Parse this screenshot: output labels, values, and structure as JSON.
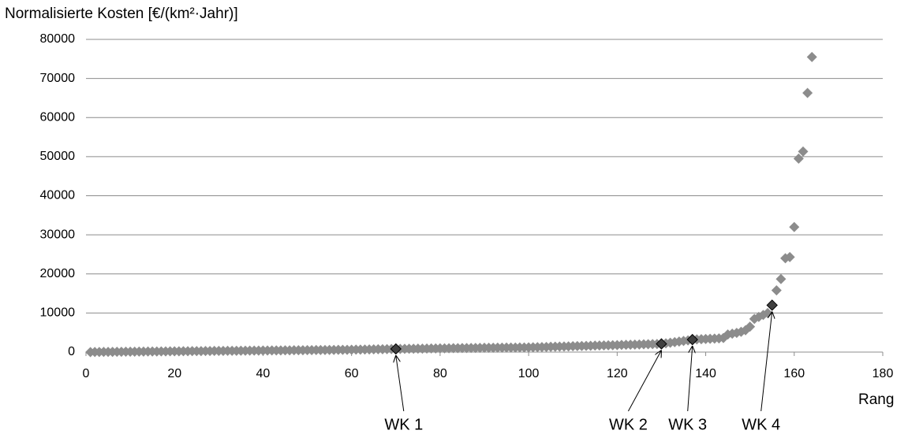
{
  "chart_data": {
    "type": "scatter",
    "y_label": "Normalisierte Kosten [€/(km²·Jahr)]",
    "x_label": "Rang",
    "xlim": [
      0,
      180
    ],
    "xticks": [
      0,
      20,
      40,
      60,
      80,
      100,
      120,
      140,
      160,
      180
    ],
    "ylim": [
      0,
      80000
    ],
    "yticks": [
      0,
      10000,
      20000,
      30000,
      40000,
      50000,
      60000,
      70000,
      80000
    ],
    "grid": true,
    "series": [
      {
        "color": "#8c8c8c",
        "x": [
          1,
          2,
          3,
          4,
          5,
          6,
          7,
          8,
          9,
          10,
          11,
          12,
          13,
          14,
          15,
          16,
          17,
          18,
          19,
          20,
          21,
          22,
          23,
          24,
          25,
          26,
          27,
          28,
          29,
          30,
          31,
          32,
          33,
          34,
          35,
          36,
          37,
          38,
          39,
          40,
          41,
          42,
          43,
          44,
          45,
          46,
          47,
          48,
          49,
          50,
          51,
          52,
          53,
          54,
          55,
          56,
          57,
          58,
          59,
          60,
          61,
          62,
          63,
          64,
          65,
          66,
          67,
          68,
          69,
          70,
          71,
          72,
          73,
          74,
          75,
          76,
          77,
          78,
          79,
          80,
          81,
          82,
          83,
          84,
          85,
          86,
          87,
          88,
          89,
          90,
          91,
          92,
          93,
          94,
          95,
          96,
          97,
          98,
          99,
          100,
          101,
          102,
          103,
          104,
          105,
          106,
          107,
          108,
          109,
          110,
          111,
          112,
          113,
          114,
          115,
          116,
          117,
          118,
          119,
          120,
          121,
          122,
          123,
          124,
          125,
          126,
          127,
          128,
          129,
          130,
          131,
          132,
          133,
          134,
          135,
          136,
          137,
          138,
          139,
          140,
          141,
          142,
          143,
          144,
          145,
          146,
          147,
          148,
          149,
          150,
          151,
          152,
          153,
          154,
          155,
          156,
          157,
          158,
          159,
          160,
          161,
          162,
          163,
          164
        ],
        "values": [
          10,
          20,
          30,
          40,
          50,
          60,
          70,
          80,
          90,
          100,
          110,
          120,
          130,
          140,
          150,
          160,
          170,
          180,
          190,
          200,
          210,
          220,
          230,
          240,
          250,
          260,
          270,
          280,
          290,
          300,
          310,
          320,
          330,
          340,
          350,
          360,
          370,
          380,
          390,
          400,
          410,
          420,
          430,
          440,
          450,
          460,
          470,
          480,
          490,
          500,
          510,
          520,
          530,
          540,
          550,
          560,
          570,
          580,
          590,
          600,
          620,
          640,
          660,
          680,
          700,
          720,
          740,
          760,
          780,
          800,
          815,
          830,
          845,
          860,
          875,
          890,
          905,
          920,
          935,
          950,
          965,
          980,
          995,
          1010,
          1025,
          1040,
          1055,
          1070,
          1085,
          1100,
          1110,
          1120,
          1130,
          1140,
          1150,
          1160,
          1170,
          1180,
          1190,
          1200,
          1230,
          1260,
          1290,
          1320,
          1350,
          1380,
          1410,
          1440,
          1470,
          1500,
          1530,
          1560,
          1590,
          1620,
          1650,
          1680,
          1710,
          1740,
          1770,
          1800,
          1830,
          1860,
          1890,
          1920,
          1950,
          1980,
          2010,
          2040,
          2070,
          2100,
          2250,
          2400,
          2550,
          2700,
          2850,
          3000,
          3200,
          3250,
          3300,
          3350,
          3400,
          3450,
          3500,
          3600,
          4500,
          4700,
          4900,
          5200,
          5600,
          6500,
          8500,
          9000,
          9500,
          10000,
          12000,
          15800,
          18700,
          24000,
          24300,
          32000,
          49500,
          51300,
          66300,
          75500
        ]
      },
      {
        "color": "#404040",
        "x": [
          70,
          130,
          137,
          155
        ],
        "values": [
          800,
          2100,
          3200,
          12000
        ],
        "labels": [
          "WK 1",
          "WK 2",
          "WK 3",
          "WK 4"
        ]
      }
    ]
  }
}
